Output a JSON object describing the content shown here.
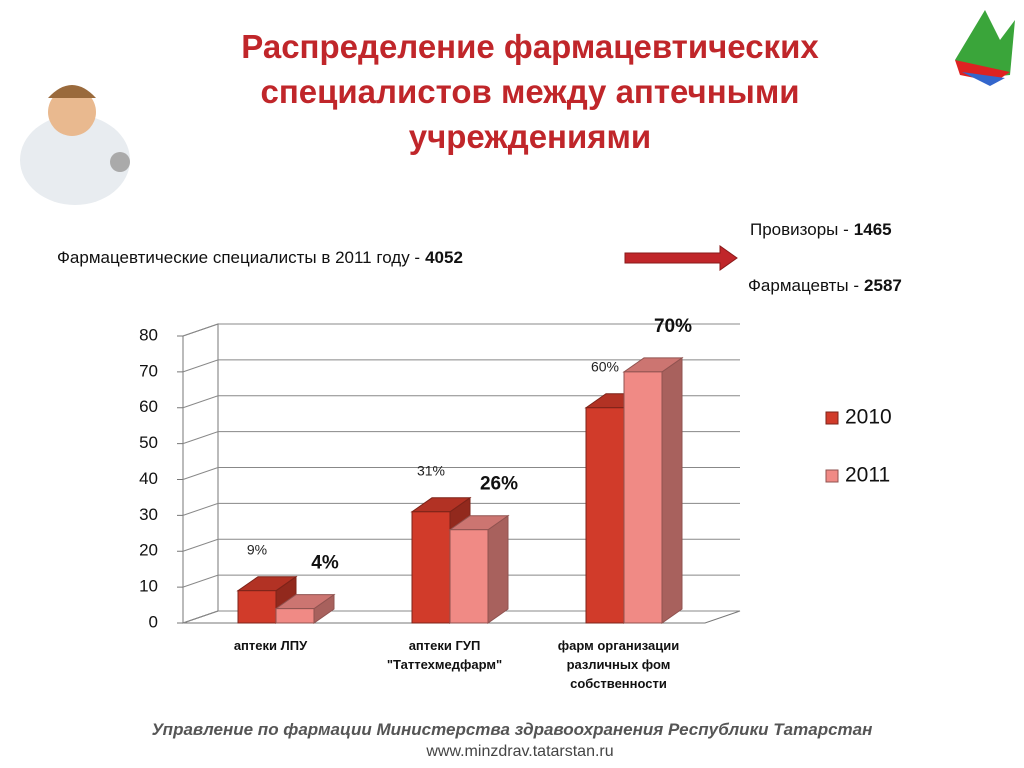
{
  "slide": {
    "title": "Распределение фармацевтических специалистов между аптечными учреждениями",
    "total_label": "Фармацевтические специалисты в 2011 году -",
    "total_value": 4052,
    "provisors_label": "Провизоры -",
    "provisors_value": 1465,
    "pharmacists_label": "Фармацевты -",
    "pharmacists_value": 2587,
    "footer": "Управление по фармации Министерства здравоохранения Республики Татарстан",
    "url": "www.minzdrav.tatarstan.ru"
  },
  "chart_data": {
    "type": "bar",
    "categories": [
      "аптеки ЛПУ",
      "аптеки ГУП \"Таттехмедфарм\"",
      "фарм организации различных фом собственности"
    ],
    "series": [
      {
        "name": "2010",
        "color": "#d13b2a",
        "values": [
          9,
          31,
          60
        ],
        "value_labels": [
          "9%",
          "31%",
          "60%"
        ]
      },
      {
        "name": "2011",
        "color": "#f08a85",
        "values": [
          4,
          26,
          70
        ],
        "value_labels": [
          "4%",
          "26%",
          "70%"
        ]
      }
    ],
    "ylim": [
      0,
      80
    ],
    "yticks": [
      0,
      10,
      20,
      30,
      40,
      50,
      60,
      70,
      80
    ],
    "grid": true,
    "legend": "right"
  }
}
